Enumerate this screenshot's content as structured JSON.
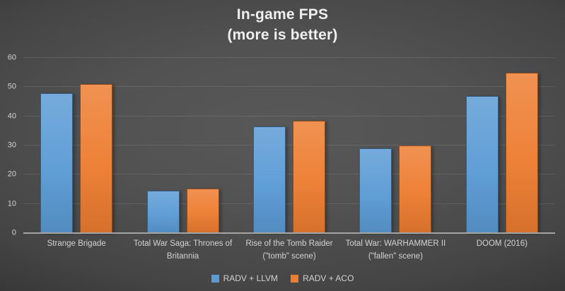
{
  "title": {
    "line1": "In-game FPS",
    "line2": "(more is better)"
  },
  "chart_data": {
    "type": "bar",
    "title": "In-game FPS (more is better)",
    "categories": [
      "Strange Brigade",
      "Total War Saga: Thrones of\nBritannia",
      "Rise of the Tomb Raider\n(\"tomb\" scene)",
      "Total War: WARHAMMER II\n(\"fallen\" scene)",
      "DOOM (2016)"
    ],
    "series": [
      {
        "name": "RADV + LLVM",
        "color": "#5b9bd5",
        "values": [
          48,
          14.5,
          36.5,
          29,
          47
        ]
      },
      {
        "name": "RADV + ACO",
        "color": "#ed7d31",
        "values": [
          51,
          15.3,
          38.5,
          30,
          55
        ]
      }
    ],
    "xlabel": "",
    "ylabel": "",
    "ylim": [
      0,
      60
    ],
    "yticks": [
      0,
      10,
      20,
      30,
      40,
      50,
      60
    ],
    "grid": true,
    "legend_position": "bottom"
  },
  "colors": {
    "background_center": "#565656",
    "background_edge": "#262626",
    "gridline": "rgba(255,255,255,0.10)",
    "axis_line": "#a3a3a3",
    "label_text": "#d2d2d2",
    "title_text": "#f0f0f0"
  }
}
